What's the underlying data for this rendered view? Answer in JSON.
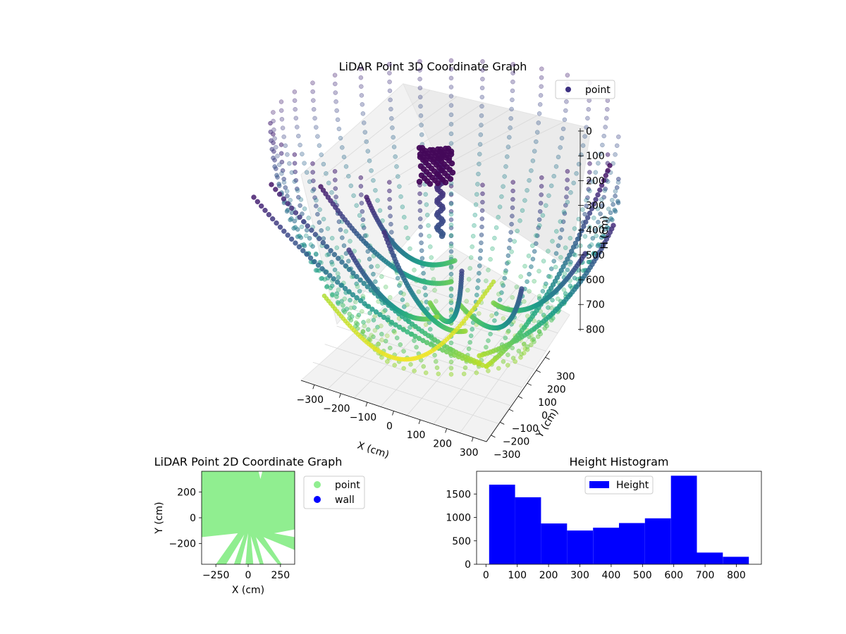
{
  "chart_data": [
    {
      "type": "scatter3d",
      "title": "LiDAR Point 3D Coordinate Graph",
      "xlabel": "X (cm)",
      "ylabel": "Y (cm)",
      "zlabel": "H (cm)",
      "xticks": [
        -300,
        -200,
        -100,
        0,
        100,
        200,
        300
      ],
      "yticks": [
        300,
        200,
        100,
        0,
        -100,
        -200,
        -300
      ],
      "zticks": [
        0,
        100,
        200,
        300,
        400,
        500,
        600,
        700,
        800
      ],
      "xtick_labels": [
        "−300",
        "−200",
        "−100",
        "0",
        "100",
        "200",
        "300"
      ],
      "ytick_labels": [
        "300",
        "200",
        "100",
        "0",
        "−100",
        "−200",
        "−300"
      ],
      "ztick_labels": [
        "0",
        "100",
        "200",
        "300",
        "400",
        "500",
        "600",
        "700",
        "800"
      ],
      "xlim": [
        -350,
        350
      ],
      "ylim": [
        -350,
        350
      ],
      "zlim": [
        0,
        850
      ],
      "zinverted": true,
      "colormap": "viridis",
      "legend": [
        {
          "label": "point",
          "color": "#3b2f80"
        }
      ],
      "legend_position": "top-right",
      "series": [
        {
          "name": "point"
        }
      ]
    },
    {
      "type": "scatter",
      "title": "LiDAR Point 2D Coordinate Graph",
      "xlabel": "X (cm)",
      "ylabel": "Y (cm)",
      "xticks": [
        -250,
        0,
        250
      ],
      "yticks": [
        200,
        0,
        -200
      ],
      "xtick_labels": [
        "−250",
        "0",
        "250"
      ],
      "ytick_labels": [
        "200",
        "0",
        "−200"
      ],
      "xlim": [
        -360,
        360
      ],
      "ylim": [
        -360,
        360
      ],
      "legend_position": "outside-right",
      "series": [
        {
          "name": "point",
          "color": "#90ee90"
        },
        {
          "name": "wall",
          "color": "#0000ff"
        }
      ]
    },
    {
      "type": "bar",
      "subtype": "histogram",
      "title": "Height Histogram",
      "xlabel": "",
      "ylabel": "",
      "legend_position": "top-center",
      "series": [
        {
          "name": "Height",
          "color": "#0000ff"
        }
      ],
      "bin_edges": [
        10,
        93,
        176,
        259,
        342,
        425,
        508,
        591,
        674,
        757,
        840
      ],
      "values": [
        1700,
        1430,
        870,
        720,
        780,
        880,
        980,
        1890,
        250,
        160
      ],
      "xticks": [
        0,
        100,
        200,
        300,
        400,
        500,
        600,
        700,
        800
      ],
      "yticks": [
        0,
        500,
        1000,
        1500
      ],
      "xtick_labels": [
        "0",
        "100",
        "200",
        "300",
        "400",
        "500",
        "600",
        "700",
        "800"
      ],
      "ytick_labels": [
        "0",
        "500",
        "1000",
        "1500"
      ],
      "xlim": [
        -30,
        880
      ],
      "ylim": [
        0,
        1985
      ]
    }
  ]
}
